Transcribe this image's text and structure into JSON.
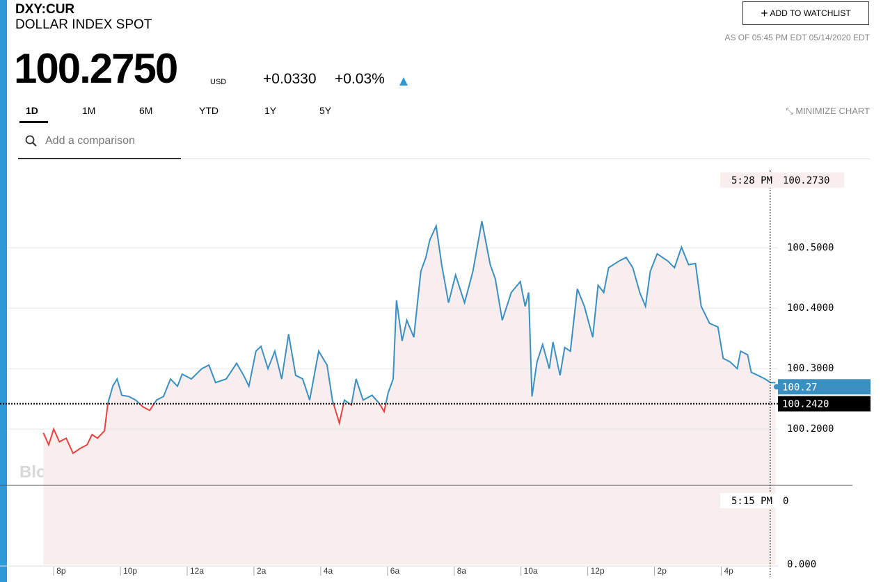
{
  "header": {
    "ticker": "DXY:CUR",
    "name": "DOLLAR INDEX SPOT",
    "price": "100.2750",
    "currency": "USD",
    "change": "+0.0330",
    "change_pct": "+0.03%",
    "watchlist": "ADD TO WATCHLIST",
    "as_of": "AS OF 05:45 PM EDT 05/14/2020 EDT"
  },
  "tabs": [
    "1D",
    "1M",
    "6M",
    "YTD",
    "1Y",
    "5Y"
  ],
  "minimize": "MINIMIZE CHART",
  "comparison_placeholder": "Add a comparison",
  "watermark": "BloombergMarkets",
  "chart_data": {
    "type": "line",
    "x": [
      19.69,
      19.85,
      20.0,
      20.17,
      20.375,
      20.58,
      20.79,
      21.0,
      21.15,
      21.31,
      21.52,
      21.625,
      21.77,
      21.9,
      22.04,
      22.25,
      22.46,
      22.67,
      22.875,
      23.08,
      23.29,
      23.5,
      23.71,
      23.85,
      24.125,
      24.44,
      24.65,
      24.85,
      25.17,
      25.48,
      25.69,
      25.85,
      26.06,
      26.21,
      26.42,
      26.625,
      26.83,
      27.04,
      27.25,
      27.46,
      27.67,
      27.94,
      28.19,
      28.35,
      28.56,
      28.71,
      28.92,
      29.06,
      29.27,
      29.54,
      29.75,
      29.9,
      30.02,
      30.17,
      30.27,
      30.44,
      30.58,
      30.79,
      31.0,
      31.15,
      31.27,
      31.46,
      31.625,
      31.83,
      32.04,
      32.31,
      32.56,
      32.83,
      33.08,
      33.23,
      33.44,
      33.71,
      33.98,
      34.125,
      34.23,
      34.33,
      34.48,
      34.65,
      34.85,
      34.96,
      35.17,
      35.31,
      35.48,
      35.69,
      35.9,
      36.15,
      36.31,
      36.48,
      36.625,
      36.94,
      37.15,
      37.35,
      37.56,
      37.73,
      37.875,
      38.08,
      38.4,
      38.6,
      38.81,
      39.02,
      39.23,
      39.4,
      39.65,
      39.9,
      40.06,
      40.27,
      40.48,
      40.58,
      40.79,
      40.9,
      41.1,
      41.31,
      41.48,
      41.625
    ],
    "values": [
      100.194,
      100.174,
      100.2,
      100.179,
      100.185,
      100.16,
      100.168,
      100.174,
      100.191,
      100.185,
      100.197,
      100.243,
      100.271,
      100.283,
      100.256,
      100.254,
      100.248,
      100.237,
      100.231,
      100.248,
      100.254,
      100.283,
      100.271,
      100.291,
      100.283,
      100.3,
      100.306,
      100.277,
      100.283,
      100.309,
      100.289,
      100.271,
      100.329,
      100.337,
      100.3,
      100.329,
      100.283,
      100.357,
      100.289,
      100.283,
      100.248,
      100.329,
      100.306,
      100.248,
      100.21,
      100.248,
      100.24,
      100.283,
      100.248,
      100.256,
      100.243,
      100.229,
      100.26,
      100.283,
      100.413,
      100.346,
      100.38,
      100.352,
      100.461,
      100.484,
      100.513,
      100.536,
      100.472,
      100.409,
      100.455,
      100.409,
      100.461,
      100.544,
      100.472,
      100.449,
      100.38,
      100.426,
      100.444,
      100.403,
      100.426,
      100.254,
      100.311,
      100.34,
      100.3,
      100.344,
      100.289,
      100.335,
      100.329,
      100.432,
      100.403,
      100.352,
      100.438,
      100.426,
      100.467,
      100.478,
      100.484,
      100.467,
      100.426,
      100.403,
      100.461,
      100.49,
      100.478,
      100.467,
      100.501,
      100.472,
      100.474,
      100.403,
      100.375,
      100.369,
      100.317,
      100.311,
      100.3,
      100.329,
      100.323,
      100.294,
      100.289,
      100.283,
      100.277,
      100.277
    ],
    "color": "#3a8fc1",
    "color_below": "#e8413f",
    "area_color": "#f8eeee",
    "xlim": [
      18.6,
      41.7
    ],
    "xticks": [
      {
        "value": 20,
        "label": "8p"
      },
      {
        "value": 22,
        "label": "10p"
      },
      {
        "value": 24,
        "label": "12a"
      },
      {
        "value": 26,
        "label": "2a"
      },
      {
        "value": 28,
        "label": "4a"
      },
      {
        "value": 30,
        "label": "6a"
      },
      {
        "value": 32,
        "label": "8a"
      },
      {
        "value": 34,
        "label": "10a"
      },
      {
        "value": 36,
        "label": "12p"
      },
      {
        "value": 38,
        "label": "2p"
      },
      {
        "value": 40,
        "label": "4p"
      }
    ],
    "ylim": [
      100.107,
      100.628
    ],
    "yticks": [
      {
        "value": 100.2,
        "label": "100.2000"
      },
      {
        "value": 100.3,
        "label": "100.3000"
      },
      {
        "value": 100.4,
        "label": "100.4000"
      },
      {
        "value": 100.5,
        "label": "100.5000"
      }
    ],
    "grid": true,
    "previous_close": {
      "value": 100.242,
      "label": "100.2420"
    },
    "last": 100.27,
    "crosshair": {
      "x": {
        "value": 41.467,
        "label": "5:28 PM"
      },
      "y": {
        "value": 100.273,
        "label": "100.2730"
      }
    },
    "volume_crosshair": {
      "x_label": "5:15 PM",
      "value": 0
    },
    "volume_ticks": [
      {
        "value": 0,
        "label": "0.000"
      }
    ]
  }
}
